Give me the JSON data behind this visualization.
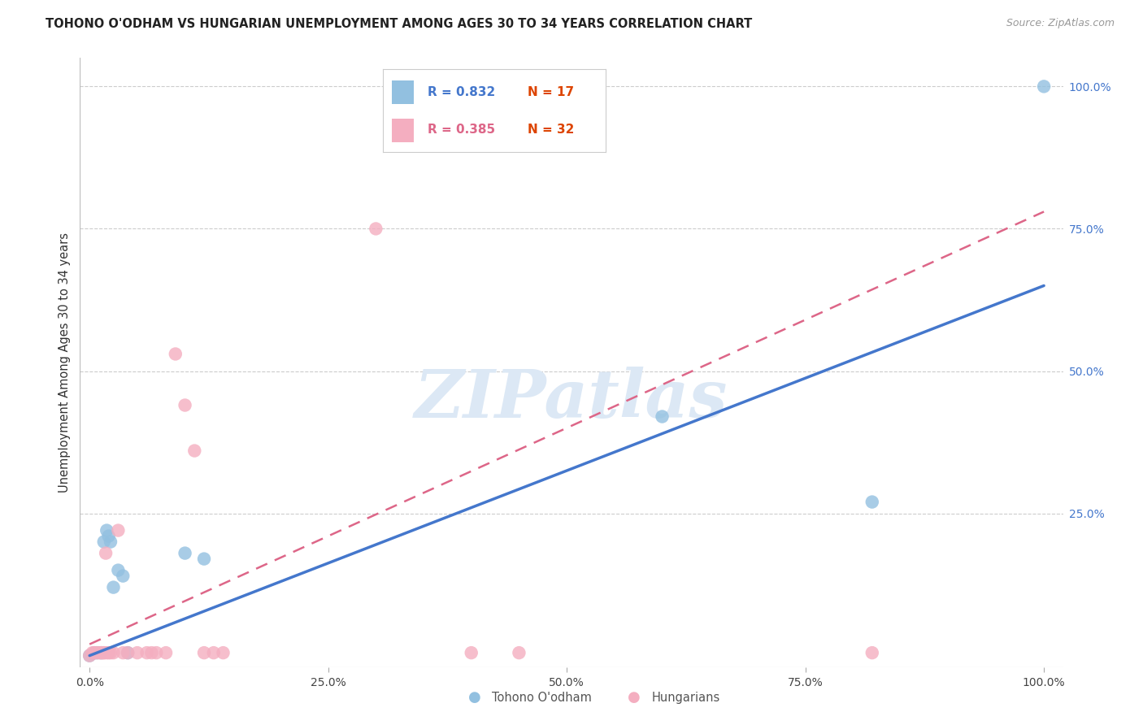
{
  "title": "TOHONO O'ODHAM VS HUNGARIAN UNEMPLOYMENT AMONG AGES 30 TO 34 YEARS CORRELATION CHART",
  "source": "Source: ZipAtlas.com",
  "ylabel": "Unemployment Among Ages 30 to 34 years",
  "xlim": [
    -0.01,
    1.02
  ],
  "ylim": [
    -0.02,
    1.05
  ],
  "xtick_values": [
    0.0,
    0.25,
    0.5,
    0.75,
    1.0
  ],
  "xtick_labels": [
    "0.0%",
    "25.0%",
    "50.0%",
    "75.0%",
    "100.0%"
  ],
  "ytick_values": [
    0.25,
    0.5,
    0.75,
    1.0
  ],
  "ytick_labels": [
    "25.0%",
    "50.0%",
    "75.0%",
    "100.0%"
  ],
  "blue_color": "#92c0e0",
  "pink_color": "#f4aec0",
  "blue_line_color": "#4477cc",
  "pink_line_color": "#dd6688",
  "legend_r_blue": "R = 0.832",
  "legend_n_blue": "N = 17",
  "legend_r_pink": "R = 0.385",
  "legend_n_pink": "N = 32",
  "blue_points": [
    [
      0.0,
      0.0
    ],
    [
      0.005,
      0.005
    ],
    [
      0.008,
      0.005
    ],
    [
      0.012,
      0.005
    ],
    [
      0.015,
      0.2
    ],
    [
      0.018,
      0.22
    ],
    [
      0.02,
      0.21
    ],
    [
      0.022,
      0.2
    ],
    [
      0.025,
      0.12
    ],
    [
      0.03,
      0.15
    ],
    [
      0.035,
      0.14
    ],
    [
      0.04,
      0.005
    ],
    [
      0.1,
      0.18
    ],
    [
      0.12,
      0.17
    ],
    [
      0.6,
      0.42
    ],
    [
      0.82,
      0.27
    ],
    [
      1.0,
      1.0
    ]
  ],
  "pink_points": [
    [
      0.0,
      0.0
    ],
    [
      0.003,
      0.005
    ],
    [
      0.005,
      0.005
    ],
    [
      0.007,
      0.005
    ],
    [
      0.01,
      0.005
    ],
    [
      0.012,
      0.005
    ],
    [
      0.013,
      0.005
    ],
    [
      0.015,
      0.005
    ],
    [
      0.015,
      0.005
    ],
    [
      0.017,
      0.18
    ],
    [
      0.018,
      0.005
    ],
    [
      0.02,
      0.005
    ],
    [
      0.022,
      0.005
    ],
    [
      0.025,
      0.005
    ],
    [
      0.03,
      0.22
    ],
    [
      0.035,
      0.005
    ],
    [
      0.04,
      0.005
    ],
    [
      0.05,
      0.005
    ],
    [
      0.06,
      0.005
    ],
    [
      0.065,
      0.005
    ],
    [
      0.07,
      0.005
    ],
    [
      0.08,
      0.005
    ],
    [
      0.09,
      0.53
    ],
    [
      0.1,
      0.44
    ],
    [
      0.11,
      0.36
    ],
    [
      0.12,
      0.005
    ],
    [
      0.13,
      0.005
    ],
    [
      0.14,
      0.005
    ],
    [
      0.3,
      0.75
    ],
    [
      0.4,
      0.005
    ],
    [
      0.45,
      0.005
    ],
    [
      0.82,
      0.005
    ]
  ],
  "blue_line": [
    [
      0.0,
      0.0
    ],
    [
      1.0,
      0.65
    ]
  ],
  "pink_line": [
    [
      0.0,
      0.02
    ],
    [
      1.0,
      0.78
    ]
  ],
  "background_color": "#ffffff",
  "grid_color": "#cccccc",
  "watermark_text": "ZIPatlas",
  "watermark_color": "#dce8f5"
}
